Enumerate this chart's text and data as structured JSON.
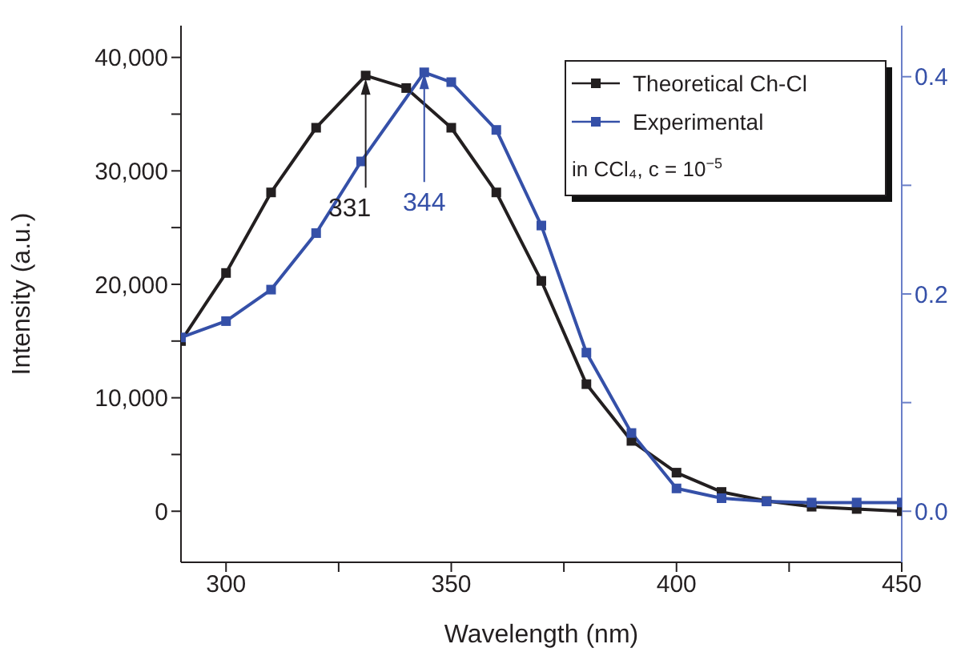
{
  "chart_data": {
    "type": "line",
    "xlabel": "Wavelength (nm)",
    "ylabel": "Intensity (a.u.)",
    "x": [
      290,
      300,
      310,
      320,
      331,
      340,
      350,
      360,
      370,
      380,
      390,
      400,
      410,
      420,
      430,
      440,
      450
    ],
    "series": [
      {
        "name": "Theoretical Ch-Cl",
        "color": "#231f20",
        "values": [
          15000,
          21000,
          28100,
          33800,
          38400,
          37300,
          33800,
          28100,
          20300,
          11200,
          6200,
          3400,
          1700,
          900,
          400,
          200,
          0
        ]
      },
      {
        "name": "Experimental",
        "color": "#3550a8",
        "axis": "y2",
        "x": [
          290,
          300,
          310,
          320,
          330,
          344,
          350,
          360,
          370,
          380,
          390,
          400,
          410,
          420,
          430,
          440,
          450
        ],
        "values": [
          0.16,
          0.175,
          0.204,
          0.256,
          0.322,
          0.404,
          0.395,
          0.351,
          0.263,
          0.146,
          0.072,
          0.021,
          0.012,
          0.009,
          0.008,
          0.008,
          0.008
        ]
      }
    ],
    "xlim": [
      290,
      450
    ],
    "xticks": [
      300,
      {
        "value": 325,
        "label": null
      },
      350,
      {
        "value": 375,
        "label": null
      },
      400,
      {
        "value": 425,
        "label": null
      },
      450
    ],
    "ylim": [
      -4500,
      42800
    ],
    "yticks": [
      {
        "value": 0,
        "label": "0"
      },
      {
        "value": 5000,
        "label": null
      },
      {
        "value": 10000,
        "label": "10,000"
      },
      {
        "value": 15000,
        "label": null
      },
      {
        "value": 20000,
        "label": "20,000"
      },
      {
        "value": 25000,
        "label": null
      },
      {
        "value": 30000,
        "label": "30,000"
      },
      {
        "value": 35000,
        "label": null
      },
      {
        "value": 40000,
        "label": "40,000"
      }
    ],
    "y2lim": [
      -0.047,
      0.447
    ],
    "y2ticks": [
      {
        "value": 0,
        "label": "0.0"
      },
      {
        "value": 0.1,
        "label": null
      },
      {
        "value": 0.2,
        "label": "0.2"
      },
      {
        "value": 0.3,
        "label": null
      },
      {
        "value": 0.4,
        "label": "0.4"
      }
    ],
    "annotations": [
      {
        "text": "331",
        "x": 331,
        "y": 38400
      },
      {
        "text": "344",
        "x": 344,
        "y": 38900
      },
      "in CCl₄, c = 10$^{−5}$"
    ],
    "marker": "square",
    "line_style": "solid",
    "grid": false,
    "legend": "top right"
  }
}
